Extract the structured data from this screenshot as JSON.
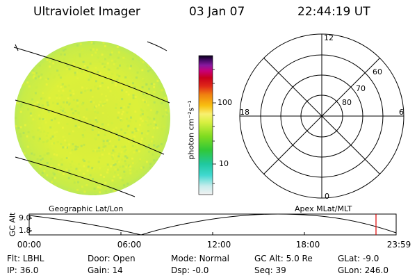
{
  "header": {
    "instrument": "Ultraviolet Imager",
    "date": "03 Jan 07",
    "time": "22:44:19 UT"
  },
  "colorbar": {
    "unit_label": "photon cm⁻²s⁻¹",
    "ticks": [
      "100",
      "10"
    ]
  },
  "polar_plot": {
    "mlt_labels": [
      "12",
      "18",
      "6",
      "0"
    ],
    "lat_labels": [
      "60",
      "70",
      "80"
    ]
  },
  "panel_labels": {
    "left": "Geographic Lat/Lon",
    "right": "Apex MLat/MLT"
  },
  "altitude_plot": {
    "ylabel": "GC Alt",
    "yticks": [
      "9.0",
      "1.8"
    ],
    "xticks": [
      "00:00",
      "06:00",
      "12:00",
      "18:00",
      "23:59"
    ],
    "current_time_marker": "22:44",
    "marker_color": "#dd0000"
  },
  "status": {
    "row1": [
      {
        "label": "Flt:",
        "value": "LBHL"
      },
      {
        "label": "Door:",
        "value": "Open"
      },
      {
        "label": "Mode:",
        "value": "Normal"
      },
      {
        "label": "GC Alt:",
        "value": "5.0 Re"
      },
      {
        "label": "GLat:",
        "value": "-9.0"
      }
    ],
    "row2": [
      {
        "label": "IP:",
        "value": "36.0"
      },
      {
        "label": "Gain:",
        "value": "14"
      },
      {
        "label": "Dsp:",
        "value": "-0.0"
      },
      {
        "label": "Seq:",
        "value": "39"
      },
      {
        "label": "GLon:",
        "value": "246.0"
      }
    ]
  }
}
